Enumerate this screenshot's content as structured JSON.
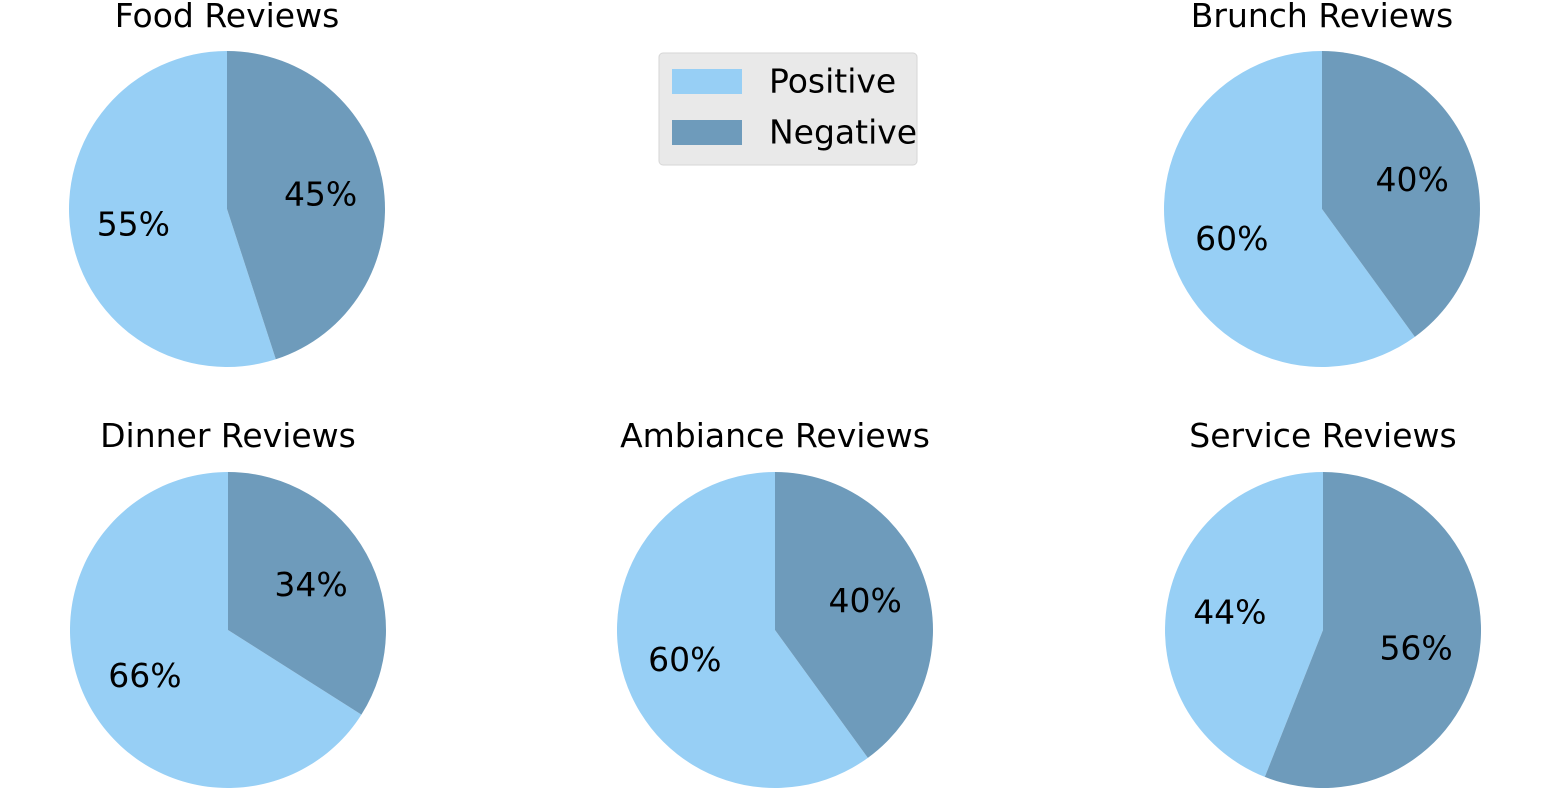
{
  "chart_data": [
    {
      "type": "pie",
      "title": "Food Reviews",
      "categories": [
        "Positive",
        "Negative"
      ],
      "values": [
        55,
        45
      ],
      "labels": [
        "55%",
        "45%"
      ]
    },
    {
      "type": "pie",
      "title": "Brunch Reviews",
      "categories": [
        "Positive",
        "Negative"
      ],
      "values": [
        60,
        40
      ],
      "labels": [
        "60%",
        "40%"
      ]
    },
    {
      "type": "pie",
      "title": "Dinner Reviews",
      "categories": [
        "Positive",
        "Negative"
      ],
      "values": [
        66,
        34
      ],
      "labels": [
        "66%",
        "34%"
      ]
    },
    {
      "type": "pie",
      "title": "Ambiance Reviews",
      "categories": [
        "Positive",
        "Negative"
      ],
      "values": [
        60,
        40
      ],
      "labels": [
        "60%",
        "40%"
      ]
    },
    {
      "type": "pie",
      "title": "Service Reviews",
      "categories": [
        "Positive",
        "Negative"
      ],
      "values": [
        44,
        56
      ],
      "labels": [
        "44%",
        "56%"
      ]
    }
  ],
  "legend": {
    "placement": "top-center",
    "items": [
      {
        "label": "Positive",
        "color": "#97cff5"
      },
      {
        "label": "Negative",
        "color": "#6e9bbb"
      }
    ]
  },
  "colors": {
    "positive": "#97cff5",
    "negative": "#6e9bbb",
    "legend_background": "#e9e9e9"
  }
}
